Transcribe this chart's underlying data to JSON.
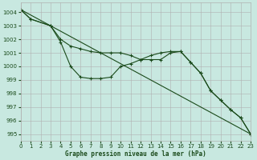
{
  "background_color": "#c8e8e0",
  "grid_color": "#b0b0b0",
  "line_color": "#1a4a1a",
  "xlabel": "Graphe pression niveau de la mer (hPa)",
  "xlim": [
    0,
    23
  ],
  "ylim": [
    994.5,
    1004.7
  ],
  "yticks": [
    995,
    996,
    997,
    998,
    999,
    1000,
    1001,
    1002,
    1003,
    1004
  ],
  "xticks": [
    0,
    1,
    2,
    3,
    4,
    5,
    6,
    7,
    8,
    9,
    10,
    11,
    12,
    13,
    14,
    15,
    16,
    17,
    18,
    19,
    20,
    21,
    22,
    23
  ],
  "series": [
    {
      "x": [
        0,
        23
      ],
      "y": [
        1004.2,
        995.0
      ],
      "markers": false
    },
    {
      "x": [
        0,
        1,
        3,
        4,
        5,
        6,
        7,
        8,
        9,
        10,
        11,
        12,
        13,
        14,
        15,
        16,
        17,
        18,
        19,
        20,
        21,
        22,
        23
      ],
      "y": [
        1004.2,
        1003.5,
        1003.0,
        1002.0,
        1001.5,
        1001.3,
        1001.1,
        1001.0,
        1001.0,
        1001.0,
        1000.8,
        1000.5,
        1000.8,
        1001.0,
        1001.1,
        1001.1,
        1000.3,
        999.5,
        998.2,
        997.5,
        996.8,
        996.2,
        995.0
      ],
      "markers": true
    },
    {
      "x": [
        0,
        1,
        3,
        4,
        5,
        6,
        7,
        8,
        9,
        10,
        11,
        12,
        13,
        14,
        15,
        16,
        17,
        18,
        19,
        20,
        21,
        22,
        23
      ],
      "y": [
        1004.2,
        1003.5,
        1003.0,
        1001.8,
        1000.0,
        999.2,
        999.1,
        999.1,
        999.2,
        1000.0,
        1000.2,
        1000.5,
        1000.5,
        1000.5,
        1001.0,
        1001.1,
        1000.3,
        999.5,
        998.2,
        997.5,
        996.8,
        996.2,
        995.0
      ],
      "markers": true
    }
  ]
}
